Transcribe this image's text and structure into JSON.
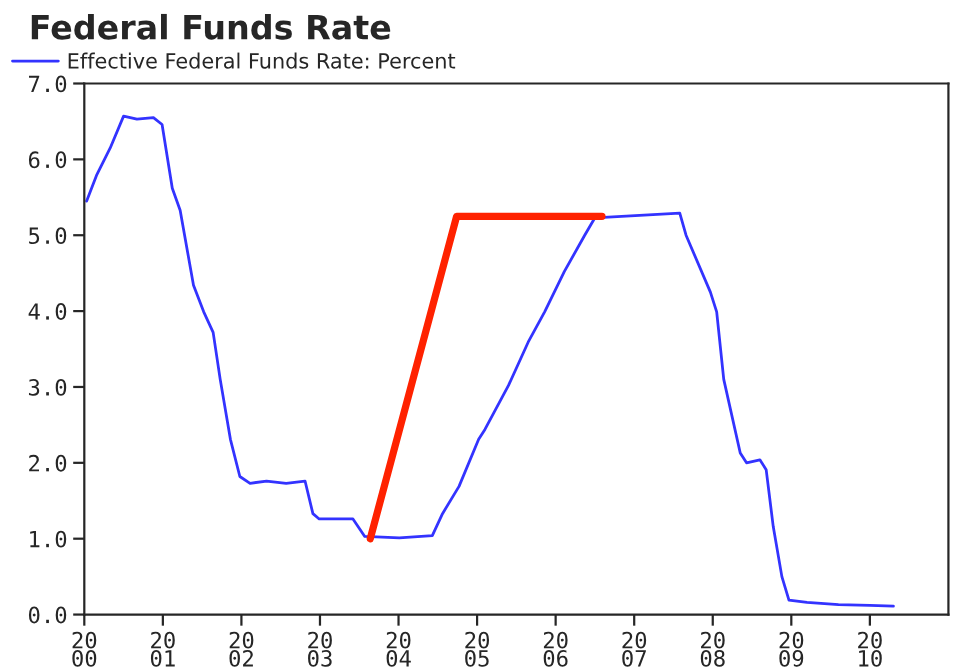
{
  "chart_data": {
    "type": "line",
    "title": "Federal Funds Rate",
    "series": [
      {
        "name": "Effective Federal Funds Rate: Percent",
        "color": "#3333ff",
        "x": [
          2000.03,
          2000.16,
          2000.33,
          2000.5,
          2000.67,
          2000.88,
          2000.99,
          2001.12,
          2001.22,
          2001.39,
          2001.52,
          2001.64,
          2001.73,
          2001.86,
          2001.98,
          2002.11,
          2002.32,
          2002.57,
          2002.81,
          2002.91,
          2002.99,
          2003.42,
          2003.57,
          2004.01,
          2004.43,
          2004.56,
          2004.77,
          2005.02,
          2005.1,
          2005.4,
          2005.65,
          2005.86,
          2006.11,
          2006.37,
          2006.5,
          2007.58,
          2007.66,
          2007.97,
          2008.05,
          2008.14,
          2008.35,
          2008.43,
          2008.6,
          2008.68,
          2008.77,
          2008.88,
          2008.97,
          2009.2,
          2009.6,
          2010.0,
          2010.3
        ],
        "values": [
          5.45,
          5.8,
          6.15,
          6.57,
          6.53,
          6.55,
          6.46,
          5.62,
          5.33,
          4.34,
          3.99,
          3.72,
          3.1,
          2.31,
          1.82,
          1.73,
          1.76,
          1.73,
          1.76,
          1.33,
          1.26,
          1.26,
          1.03,
          1.01,
          1.04,
          1.33,
          1.69,
          2.31,
          2.44,
          3.02,
          3.59,
          3.99,
          4.52,
          5.0,
          5.23,
          5.29,
          5.0,
          4.25,
          3.99,
          3.1,
          2.13,
          2.0,
          2.04,
          1.91,
          1.16,
          0.5,
          0.19,
          0.16,
          0.13,
          0.12,
          0.11
        ]
      },
      {
        "color": "#ff2200",
        "x": [
          2003.64,
          2004.74,
          2006.59
        ],
        "values": [
          1.0,
          5.25,
          5.25
        ]
      }
    ],
    "xlim": [
      2000,
      2011
    ],
    "xticks": [
      2000,
      2001,
      2002,
      2003,
      2004,
      2005,
      2006,
      2007,
      2008,
      2009,
      2010
    ],
    "ylim": [
      0,
      7
    ],
    "yticks": [
      {
        "value": 0,
        "label": "0.0"
      },
      {
        "value": 1,
        "label": "1.0"
      },
      {
        "value": 2,
        "label": "2.0"
      },
      {
        "value": 3,
        "label": "3.0"
      },
      {
        "value": 4,
        "label": "4.0"
      },
      {
        "value": 5,
        "label": "5.0"
      },
      {
        "value": 6,
        "label": "6.0"
      },
      {
        "value": 7,
        "label": "7.0"
      }
    ],
    "grid": false,
    "legend": "top left",
    "marker": "none",
    "line_style": "solid"
  }
}
